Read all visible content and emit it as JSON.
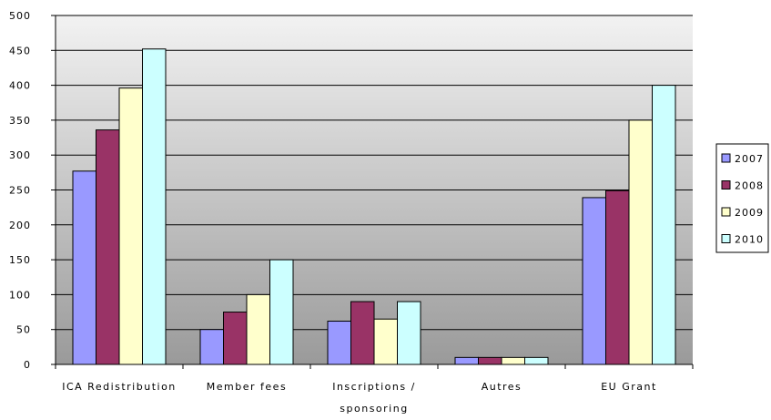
{
  "chart_data": {
    "type": "bar",
    "categories": [
      [
        "ICA Redistribution"
      ],
      [
        "Member fees"
      ],
      [
        "Inscriptions /",
        "sponsoring"
      ],
      [
        "Autres"
      ],
      [
        "EU Grant"
      ]
    ],
    "series": [
      {
        "name": "2007",
        "color": "#9999ff",
        "values": [
          277,
          50,
          62,
          10,
          239
        ]
      },
      {
        "name": "2008",
        "color": "#993366",
        "values": [
          336,
          75,
          90,
          10,
          249
        ]
      },
      {
        "name": "2009",
        "color": "#ffffcc",
        "values": [
          396,
          100,
          65,
          10,
          350
        ]
      },
      {
        "name": "2010",
        "color": "#ccffff",
        "values": [
          452,
          150,
          90,
          10,
          400
        ]
      }
    ],
    "ylim": [
      0,
      500
    ],
    "yticks": [
      0,
      50,
      100,
      150,
      200,
      250,
      300,
      350,
      400,
      450,
      500
    ],
    "grid": true,
    "legend": "right"
  }
}
